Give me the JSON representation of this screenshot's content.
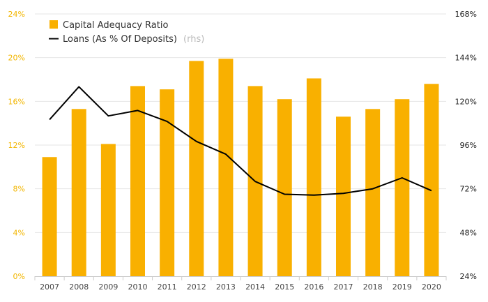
{
  "colors": {
    "bar": "#f9b000",
    "line": "#000000",
    "left_axis_text": "#f2b600",
    "right_axis_text": "#222222",
    "grid": "#e6e6e6"
  },
  "legend": {
    "bar_label": "Capital Adequacy Ratio",
    "line_label": "Loans (As % Of Deposits)",
    "line_note": "(rhs)",
    "position": "top-left"
  },
  "chart_data": {
    "type": "bar",
    "categories": [
      "2007",
      "2008",
      "2009",
      "2010",
      "2011",
      "2012",
      "2013",
      "2014",
      "2015",
      "2016",
      "2017",
      "2018",
      "2019",
      "2020"
    ],
    "series": [
      {
        "name": "Capital Adequacy Ratio",
        "type": "bar",
        "axis": "left",
        "values": [
          10.9,
          15.3,
          12.1,
          17.4,
          17.1,
          19.7,
          19.9,
          17.4,
          16.2,
          18.1,
          14.6,
          15.3,
          16.2,
          17.6
        ]
      },
      {
        "name": "Loans (As % Of Deposits)",
        "type": "line",
        "axis": "right",
        "values": [
          110,
          128,
          112,
          115,
          109,
          98,
          91,
          76,
          69,
          68.5,
          69.5,
          72,
          78,
          71
        ]
      }
    ],
    "y_left": {
      "min": 0,
      "max": 24,
      "ticks": [
        "0%",
        "4%",
        "8%",
        "12%",
        "16%",
        "20%",
        "24%"
      ]
    },
    "y_right": {
      "min": 24,
      "max": 168,
      "ticks": [
        "24%",
        "48%",
        "72%",
        "96%",
        "120%",
        "144%",
        "168%"
      ]
    },
    "grid": true
  }
}
